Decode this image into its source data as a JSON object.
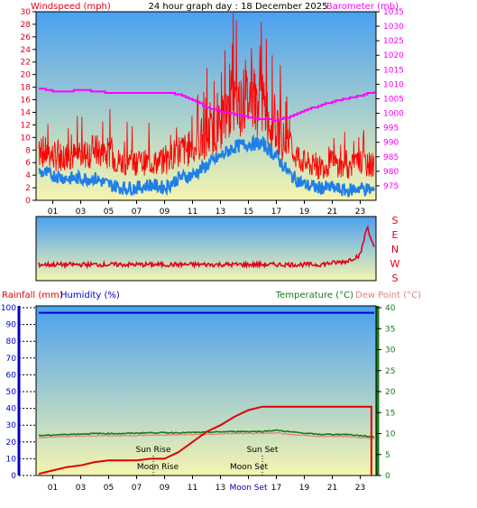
{
  "title": "24 hour graph day : 18 December 2025",
  "colors": {
    "wind": "#e0001a",
    "gust": "#ff0000",
    "avg": "#1e7fe8",
    "baro": "#ff00ff",
    "rain": "#e00000",
    "hum": "#0000cc",
    "temp": "#1a7a1a",
    "dew": "#e08080",
    "sky_top": "#4aa0f0",
    "sky_bottom": "#f5f5b0"
  },
  "top_panel": {
    "left_label": "Windspeed (mph)",
    "right_label": "Barometer (mb)"
  },
  "dir_panel": {
    "labels": [
      "S",
      "E",
      "N",
      "W",
      "S"
    ]
  },
  "bottom_panel": {
    "rain_label": "Rainfall (mm)",
    "hum_label": "Humidity (%)",
    "temp_label": "Temperature (°C)",
    "dew_label": "Dew Point (°C)",
    "sun_rise": "Sun Rise",
    "sun_set": "Sun Set",
    "moon_rise": "Moon Rise",
    "moon_set": "Moon Set"
  },
  "chart_data": [
    {
      "type": "line",
      "title": "24 hour graph day : 18 December 2025",
      "ylabel": "Windspeed (mph)",
      "y2label": "Barometer (mb)",
      "xlim": [
        0,
        24
      ],
      "ylim": [
        0,
        30
      ],
      "y2lim": [
        970,
        1035
      ],
      "x_ticks": [
        "01",
        "03",
        "05",
        "07",
        "09",
        "11",
        "13",
        "15",
        "17",
        "19",
        "21",
        "23"
      ],
      "y_ticks": [
        0,
        2,
        4,
        6,
        8,
        10,
        12,
        14,
        16,
        18,
        20,
        22,
        24,
        26,
        28,
        30
      ],
      "y2_ticks": [
        975,
        980,
        985,
        990,
        995,
        1000,
        1005,
        1010,
        1015,
        1020,
        1025,
        1030,
        1035
      ],
      "series": [
        {
          "name": "Gust",
          "x": [
            0,
            1,
            2,
            3,
            4,
            5,
            6,
            7,
            8,
            9,
            10,
            11,
            12,
            13,
            14,
            15,
            16,
            17,
            18,
            19,
            20,
            21,
            22,
            23,
            24
          ],
          "values": [
            8,
            7,
            7,
            7,
            8,
            7,
            6,
            6,
            6,
            6,
            8,
            8,
            10,
            12,
            15,
            16,
            15,
            11,
            8,
            6,
            5,
            6,
            5,
            6,
            5
          ]
        },
        {
          "name": "Average",
          "x": [
            0,
            1,
            2,
            3,
            4,
            5,
            6,
            7,
            8,
            9,
            10,
            11,
            12,
            13,
            14,
            15,
            16,
            17,
            18,
            19,
            20,
            21,
            22,
            23,
            24
          ],
          "values": [
            4.5,
            4,
            3.5,
            3.5,
            3.5,
            2.5,
            2,
            2,
            2.5,
            2,
            3.5,
            4,
            5.5,
            7,
            8.5,
            9,
            9,
            7,
            4,
            2.5,
            2,
            2,
            1.5,
            2,
            1.5
          ]
        },
        {
          "name": "Barometer",
          "x": [
            0,
            1,
            2,
            3,
            4,
            5,
            6,
            7,
            8,
            9,
            10,
            11,
            12,
            13,
            14,
            15,
            16,
            17,
            18,
            19,
            20,
            21,
            22,
            23,
            24
          ],
          "values": [
            1008.5,
            1007.5,
            1007.5,
            1008,
            1007.5,
            1007,
            1007,
            1007,
            1007,
            1007,
            1006.5,
            1004.5,
            1002,
            1000.5,
            999.5,
            998.5,
            998,
            997.5,
            999,
            1001,
            1002.5,
            1004,
            1005,
            1006,
            1007.5
          ]
        }
      ]
    },
    {
      "type": "line",
      "ylabel": "Wind direction",
      "xlim": [
        0,
        24
      ],
      "y_ticks": [
        "S",
        "E",
        "N",
        "W",
        "S"
      ],
      "series": [
        {
          "name": "Direction",
          "x": [
            0,
            2,
            4,
            6,
            8,
            10,
            12,
            14,
            16,
            18,
            20,
            22,
            23,
            23.5,
            24
          ],
          "values": [
            0.25,
            0.25,
            0.25,
            0.25,
            0.25,
            0.25,
            0.25,
            0.25,
            0.25,
            0.25,
            0.25,
            0.3,
            0.4,
            0.85,
            0.5
          ]
        }
      ]
    },
    {
      "type": "line",
      "ylabel": "Rainfall (mm) / Humidity (%)",
      "y2label": "Temperature (°C) / Dew Point (°C)",
      "xlim": [
        0,
        24
      ],
      "ylim": [
        0,
        100
      ],
      "y2lim": [
        0,
        40
      ],
      "x_ticks": [
        "01",
        "03",
        "05",
        "07",
        "09",
        "11",
        "13",
        "Moon Set",
        "17",
        "19",
        "21",
        "23"
      ],
      "y_ticks": [
        0,
        10,
        20,
        30,
        40,
        50,
        60,
        70,
        80,
        90,
        100
      ],
      "y2_ticks": [
        0,
        5,
        10,
        15,
        20,
        25,
        30,
        35,
        40
      ],
      "series": [
        {
          "name": "Rainfall",
          "x": [
            0,
            1,
            2,
            3,
            4,
            5,
            6,
            7,
            8,
            9,
            10,
            11,
            12,
            13,
            14,
            15,
            16,
            17,
            18,
            19,
            20,
            21,
            22,
            23,
            23.8,
            23.8
          ],
          "values": [
            1,
            3,
            5,
            6,
            8,
            9,
            9,
            9,
            10,
            10,
            14,
            20,
            26,
            30,
            35,
            39,
            41,
            41,
            41,
            41,
            41,
            41,
            41,
            41,
            41,
            0
          ]
        },
        {
          "name": "Humidity",
          "x": [
            0,
            24
          ],
          "values": [
            97,
            97
          ]
        },
        {
          "name": "Temperature",
          "x": [
            0,
            2,
            4,
            6,
            8,
            10,
            12,
            14,
            16,
            17,
            18,
            20,
            22,
            24
          ],
          "values": [
            9.5,
            9.8,
            10,
            10,
            10.2,
            10.2,
            10.3,
            10.5,
            10.5,
            10.8,
            10.4,
            9.8,
            9.8,
            9.2
          ]
        },
        {
          "name": "Dew Point",
          "x": [
            0,
            2,
            4,
            6,
            8,
            10,
            12,
            14,
            16,
            17,
            18,
            20,
            22,
            24
          ],
          "values": [
            9.0,
            9.3,
            9.5,
            9.5,
            9.6,
            9.7,
            9.8,
            10.0,
            10.0,
            10.2,
            9.8,
            9.3,
            9.3,
            8.8
          ]
        }
      ]
    }
  ]
}
